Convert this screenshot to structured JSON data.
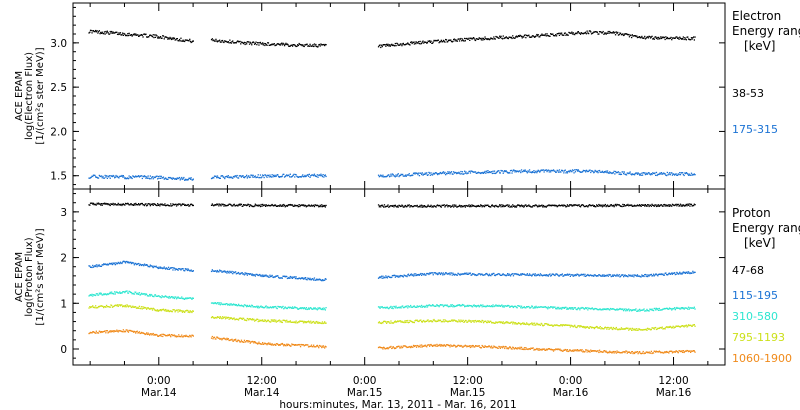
{
  "x_title": "hours:minutes, Mar. 13, 2011 - Mar. 16, 2011",
  "x_ticks": [
    {
      "t": 24,
      "time": "0:00",
      "date": "Mar.14"
    },
    {
      "t": 36,
      "time": "12:00",
      "date": "Mar.14"
    },
    {
      "t": 48,
      "time": "0:00",
      "date": "Mar.15"
    },
    {
      "t": 60,
      "time": "12:00",
      "date": "Mar.15"
    },
    {
      "t": 72,
      "time": "0:00",
      "date": "Mar.16"
    },
    {
      "t": 84,
      "time": "12:00",
      "date": "Mar.16"
    }
  ],
  "chart_data": [
    {
      "type": "scatter",
      "title": "",
      "ylabel": [
        "ACE EPAM",
        "log(Electron Flux)",
        "[1/(cm²s ster MeV)]"
      ],
      "xlabel": "hours:minutes, Mar. 13, 2011 - Mar. 16, 2011",
      "xlim_hours_since_mar13": [
        14,
        90
      ],
      "ylim": [
        1.35,
        3.45
      ],
      "yticks": [
        "1.5",
        "2.0",
        "2.5",
        "3.0"
      ],
      "legend_title": [
        "Electron",
        "Energy ranges",
        "[keV]"
      ],
      "data_gaps_hours": [
        [
          28,
          30
        ],
        [
          43.5,
          49.5
        ]
      ],
      "data_end_hour": 86.5,
      "series": [
        {
          "name": "38-53",
          "color": "#000000",
          "x": [
            16,
            20,
            24,
            27.8,
            30.2,
            34,
            38,
            43,
            49.8,
            54,
            60,
            66,
            70,
            74,
            77,
            80,
            86.5
          ],
          "y": [
            3.13,
            3.1,
            3.07,
            3.02,
            3.03,
            3.0,
            2.98,
            2.97,
            2.96,
            3.0,
            3.04,
            3.07,
            3.09,
            3.12,
            3.11,
            3.06,
            3.05
          ]
        },
        {
          "name": "175-315",
          "color": "#1a72d4",
          "x": [
            16,
            24,
            27.8,
            30.2,
            38,
            43,
            49.8,
            58,
            66,
            74,
            80,
            86.5
          ],
          "y": [
            1.49,
            1.48,
            1.46,
            1.48,
            1.5,
            1.5,
            1.5,
            1.53,
            1.55,
            1.55,
            1.52,
            1.52
          ]
        }
      ]
    },
    {
      "type": "scatter",
      "title": "",
      "ylabel": [
        "ACE EPAM",
        "log(Proton Flux)",
        "[1/(cm²s ster MeV)]"
      ],
      "xlabel": "hours:minutes, Mar. 13, 2011 - Mar. 16, 2011",
      "xlim_hours_since_mar13": [
        14,
        90
      ],
      "ylim": [
        -0.35,
        3.5
      ],
      "yticks": [
        "0",
        "1",
        "2",
        "3"
      ],
      "legend_title": [
        "Proton",
        "Energy ranges",
        "[keV]"
      ],
      "data_gaps_hours": [
        [
          28,
          30
        ],
        [
          43.5,
          49.5
        ]
      ],
      "data_end_hour": 86.5,
      "series": [
        {
          "name": "47-68",
          "color": "#000000",
          "x": [
            16,
            27.8,
            30.2,
            43,
            49.8,
            70,
            86.5
          ],
          "y": [
            3.17,
            3.15,
            3.15,
            3.13,
            3.13,
            3.13,
            3.15
          ]
        },
        {
          "name": "115-195",
          "color": "#1a72d4",
          "x": [
            16,
            20,
            24,
            27.8,
            30.2,
            36,
            43,
            49.8,
            56,
            62,
            70,
            80,
            86.5
          ],
          "y": [
            1.8,
            1.9,
            1.78,
            1.72,
            1.72,
            1.6,
            1.52,
            1.57,
            1.65,
            1.63,
            1.62,
            1.6,
            1.68
          ]
        },
        {
          "name": "310-580",
          "color": "#2ee6d0",
          "x": [
            16,
            20,
            24,
            27.8,
            30.2,
            36,
            43,
            49.8,
            56,
            62,
            70,
            80,
            86.5
          ],
          "y": [
            1.18,
            1.25,
            1.15,
            1.1,
            1.0,
            0.92,
            0.88,
            0.9,
            0.95,
            0.95,
            0.9,
            0.85,
            0.9
          ]
        },
        {
          "name": "795-1193",
          "color": "#cce01a",
          "x": [
            16,
            20,
            24,
            27.8,
            30.2,
            36,
            43,
            49.8,
            56,
            62,
            70,
            80,
            86.5
          ],
          "y": [
            0.92,
            0.95,
            0.85,
            0.82,
            0.7,
            0.62,
            0.58,
            0.58,
            0.62,
            0.6,
            0.52,
            0.42,
            0.52
          ]
        },
        {
          "name": "1060-1900",
          "color": "#f08a1a",
          "x": [
            16,
            20,
            24,
            27.8,
            30.2,
            36,
            43,
            49.8,
            56,
            62,
            70,
            80,
            86.5
          ],
          "y": [
            0.36,
            0.4,
            0.3,
            0.28,
            0.25,
            0.12,
            0.05,
            0.02,
            0.08,
            0.05,
            -0.02,
            -0.08,
            -0.05
          ]
        }
      ]
    }
  ]
}
